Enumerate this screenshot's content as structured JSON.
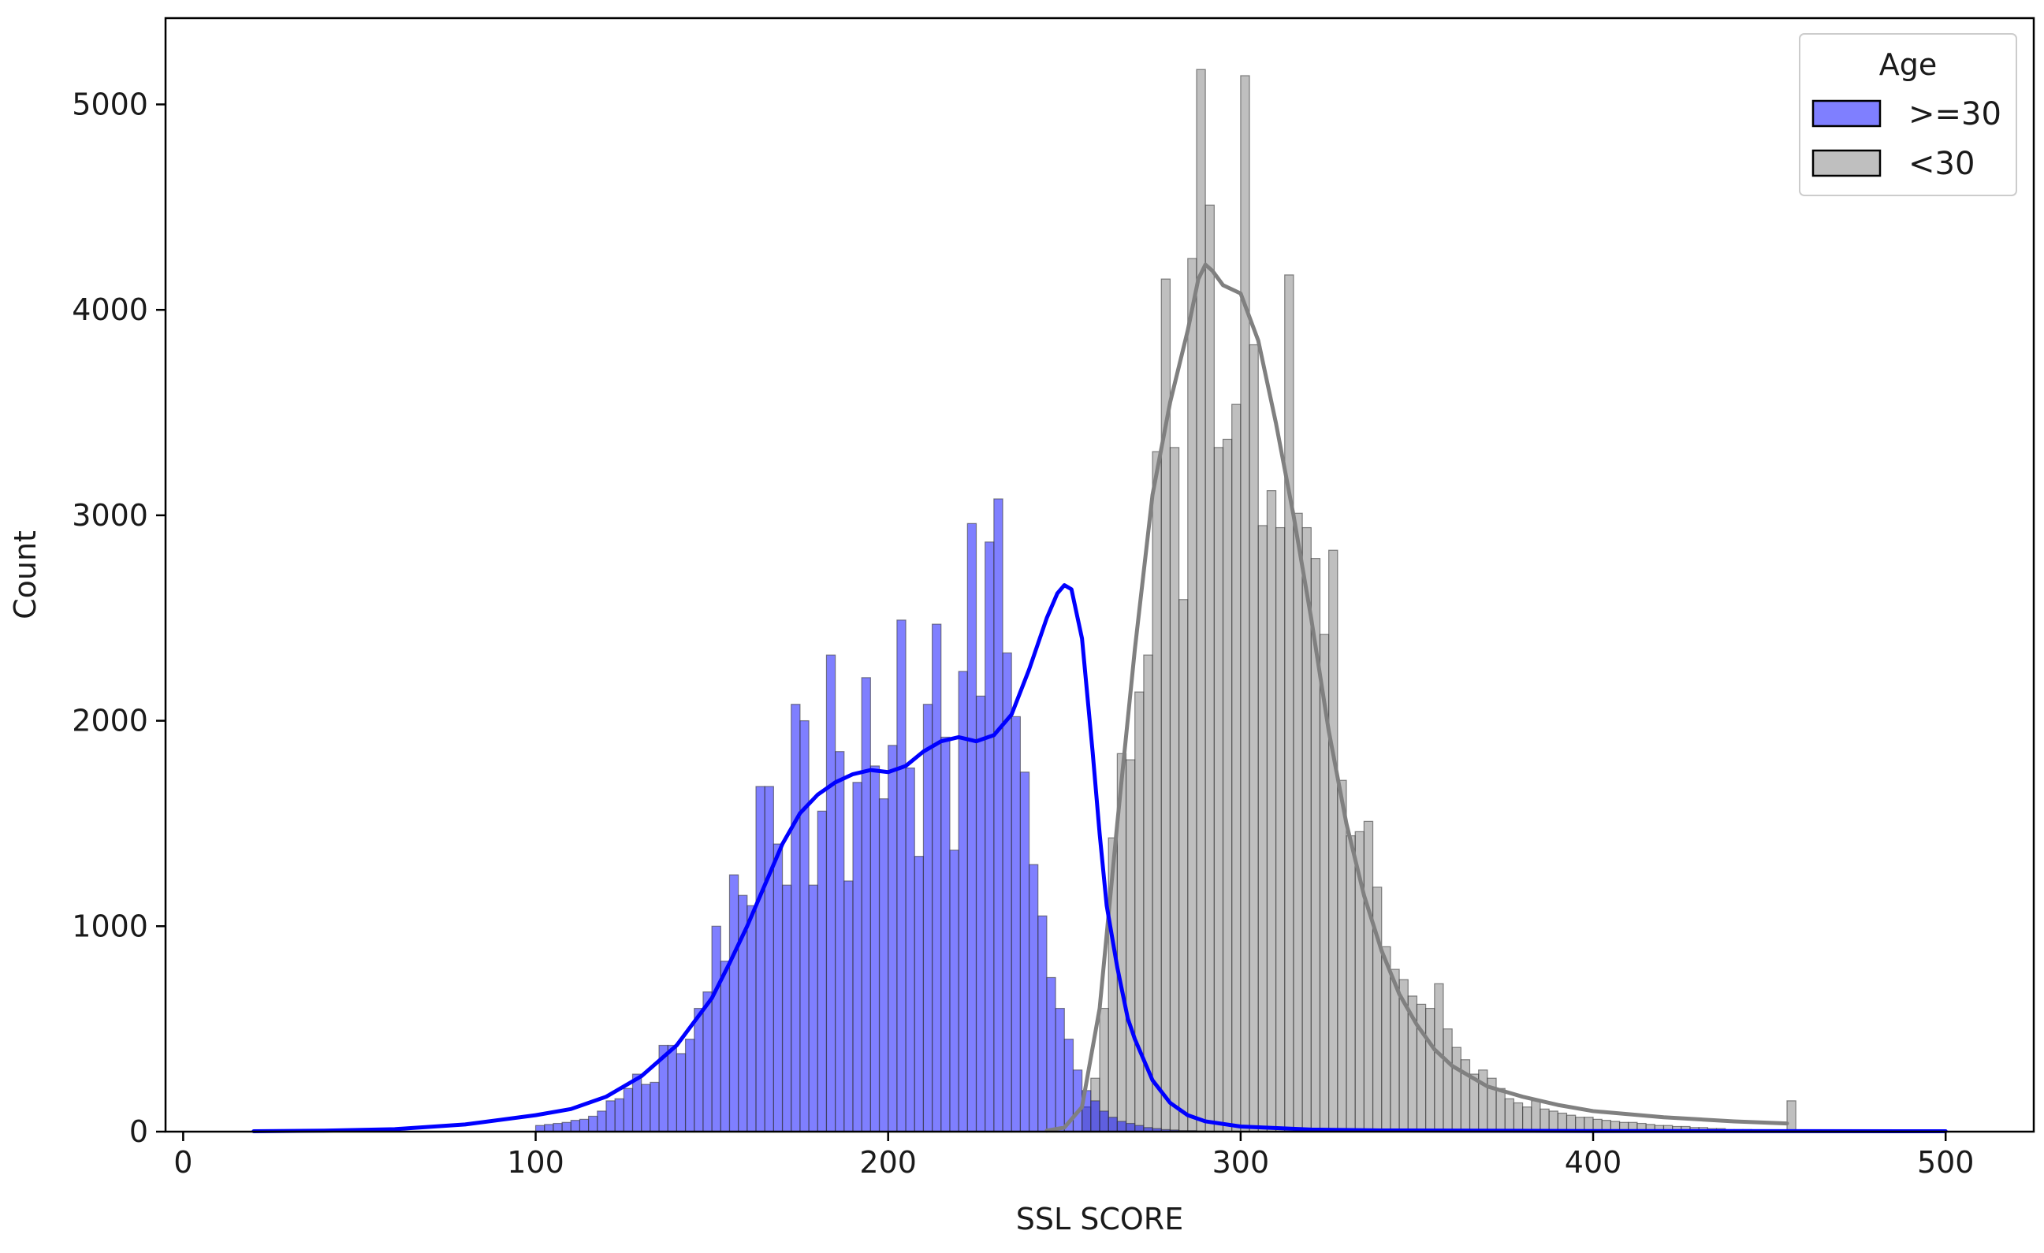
{
  "chart_data": {
    "type": "histogram",
    "xlabel": "SSL SCORE",
    "ylabel": "Count",
    "xlim": [
      -5,
      525
    ],
    "ylim": [
      0,
      5420
    ],
    "bin_width": 2.5,
    "x_ticks": [
      0,
      100,
      200,
      300,
      400,
      500
    ],
    "y_ticks": [
      0,
      1000,
      2000,
      3000,
      4000,
      5000
    ],
    "legend": {
      "title": "Age",
      "placement": "top-right"
    },
    "series": [
      {
        "name": ">=30",
        "color": "#0000ff",
        "bar_fill": "rgba(0,0,255,0.5)",
        "bins": [
          [
            100,
            30
          ],
          [
            102.5,
            35
          ],
          [
            105,
            40
          ],
          [
            107.5,
            45
          ],
          [
            110,
            55
          ],
          [
            112.5,
            60
          ],
          [
            115,
            75
          ],
          [
            117.5,
            100
          ],
          [
            120,
            150
          ],
          [
            122.5,
            160
          ],
          [
            125,
            210
          ],
          [
            127.5,
            280
          ],
          [
            130,
            230
          ],
          [
            132.5,
            240
          ],
          [
            135,
            420
          ],
          [
            137.5,
            420
          ],
          [
            140,
            380
          ],
          [
            142.5,
            450
          ],
          [
            145,
            600
          ],
          [
            147.5,
            680
          ],
          [
            150,
            1000
          ],
          [
            152.5,
            830
          ],
          [
            155,
            1250
          ],
          [
            157.5,
            1150
          ],
          [
            160,
            1100
          ],
          [
            162.5,
            1680
          ],
          [
            165,
            1680
          ],
          [
            167.5,
            1400
          ],
          [
            170,
            1200
          ],
          [
            172.5,
            2080
          ],
          [
            175,
            2000
          ],
          [
            177.5,
            1200
          ],
          [
            180,
            1560
          ],
          [
            182.5,
            2320
          ],
          [
            185,
            1850
          ],
          [
            187.5,
            1220
          ],
          [
            190,
            1700
          ],
          [
            192.5,
            2210
          ],
          [
            195,
            1780
          ],
          [
            197.5,
            1620
          ],
          [
            200,
            1880
          ],
          [
            202.5,
            2490
          ],
          [
            205,
            1770
          ],
          [
            207.5,
            1340
          ],
          [
            210,
            2080
          ],
          [
            212.5,
            2470
          ],
          [
            215,
            1920
          ],
          [
            217.5,
            1370
          ],
          [
            220,
            2240
          ],
          [
            222.5,
            2960
          ],
          [
            225,
            2120
          ],
          [
            227.5,
            2870
          ],
          [
            230,
            3080
          ],
          [
            232.5,
            2330
          ],
          [
            235,
            2020
          ],
          [
            237.5,
            1750
          ],
          [
            240,
            1300
          ],
          [
            242.5,
            1050
          ],
          [
            245,
            750
          ],
          [
            247.5,
            600
          ],
          [
            250,
            450
          ],
          [
            252.5,
            300
          ],
          [
            255,
            200
          ],
          [
            257.5,
            150
          ],
          [
            260,
            100
          ],
          [
            262.5,
            70
          ],
          [
            265,
            50
          ],
          [
            267.5,
            40
          ],
          [
            270,
            30
          ],
          [
            272.5,
            20
          ],
          [
            275,
            15
          ],
          [
            277.5,
            10
          ],
          [
            280,
            8
          ],
          [
            282.5,
            5
          ],
          [
            285,
            5
          ],
          [
            287.5,
            3
          ],
          [
            290,
            2
          ]
        ],
        "kde": [
          [
            20,
            2
          ],
          [
            40,
            5
          ],
          [
            60,
            12
          ],
          [
            80,
            35
          ],
          [
            100,
            80
          ],
          [
            110,
            110
          ],
          [
            120,
            170
          ],
          [
            130,
            270
          ],
          [
            140,
            420
          ],
          [
            150,
            650
          ],
          [
            155,
            820
          ],
          [
            160,
            1000
          ],
          [
            165,
            1200
          ],
          [
            170,
            1400
          ],
          [
            175,
            1550
          ],
          [
            180,
            1640
          ],
          [
            185,
            1700
          ],
          [
            190,
            1740
          ],
          [
            195,
            1760
          ],
          [
            200,
            1750
          ],
          [
            205,
            1780
          ],
          [
            210,
            1850
          ],
          [
            215,
            1900
          ],
          [
            220,
            1920
          ],
          [
            225,
            1900
          ],
          [
            230,
            1930
          ],
          [
            235,
            2030
          ],
          [
            240,
            2250
          ],
          [
            245,
            2500
          ],
          [
            248,
            2620
          ],
          [
            250,
            2660
          ],
          [
            252,
            2640
          ],
          [
            255,
            2400
          ],
          [
            258,
            1850
          ],
          [
            260,
            1450
          ],
          [
            262,
            1100
          ],
          [
            265,
            800
          ],
          [
            268,
            550
          ],
          [
            270,
            450
          ],
          [
            275,
            250
          ],
          [
            280,
            140
          ],
          [
            285,
            80
          ],
          [
            290,
            50
          ],
          [
            300,
            25
          ],
          [
            320,
            10
          ],
          [
            340,
            6
          ],
          [
            400,
            3
          ],
          [
            500,
            2
          ]
        ]
      },
      {
        "name": "<30",
        "color": "#808080",
        "bar_fill": "rgba(128,128,128,0.5)",
        "bins": [
          [
            255,
            120
          ],
          [
            257.5,
            260
          ],
          [
            260,
            600
          ],
          [
            262.5,
            1430
          ],
          [
            265,
            1840
          ],
          [
            267.5,
            1810
          ],
          [
            270,
            2140
          ],
          [
            272.5,
            2320
          ],
          [
            275,
            3310
          ],
          [
            277.5,
            4150
          ],
          [
            280,
            3330
          ],
          [
            282.5,
            2590
          ],
          [
            285,
            4250
          ],
          [
            287.5,
            5170
          ],
          [
            290,
            4510
          ],
          [
            292.5,
            3330
          ],
          [
            295,
            3370
          ],
          [
            297.5,
            3540
          ],
          [
            300,
            5140
          ],
          [
            302.5,
            3830
          ],
          [
            305,
            2950
          ],
          [
            307.5,
            3120
          ],
          [
            310,
            2940
          ],
          [
            312.5,
            4170
          ],
          [
            315,
            3010
          ],
          [
            317.5,
            2940
          ],
          [
            320,
            2790
          ],
          [
            322.5,
            2420
          ],
          [
            325,
            2830
          ],
          [
            327.5,
            1710
          ],
          [
            330,
            1440
          ],
          [
            332.5,
            1460
          ],
          [
            335,
            1510
          ],
          [
            337.5,
            1190
          ],
          [
            340,
            900
          ],
          [
            342.5,
            790
          ],
          [
            345,
            740
          ],
          [
            347.5,
            660
          ],
          [
            350,
            620
          ],
          [
            352.5,
            600
          ],
          [
            355,
            720
          ],
          [
            357.5,
            500
          ],
          [
            360,
            410
          ],
          [
            362.5,
            350
          ],
          [
            365,
            280
          ],
          [
            367.5,
            300
          ],
          [
            370,
            260
          ],
          [
            372.5,
            210
          ],
          [
            375,
            160
          ],
          [
            377.5,
            140
          ],
          [
            380,
            120
          ],
          [
            382.5,
            150
          ],
          [
            385,
            110
          ],
          [
            387.5,
            100
          ],
          [
            390,
            90
          ],
          [
            392.5,
            80
          ],
          [
            395,
            70
          ],
          [
            397.5,
            70
          ],
          [
            400,
            60
          ],
          [
            402.5,
            55
          ],
          [
            405,
            50
          ],
          [
            407.5,
            45
          ],
          [
            410,
            45
          ],
          [
            412.5,
            40
          ],
          [
            415,
            35
          ],
          [
            417.5,
            30
          ],
          [
            420,
            30
          ],
          [
            422.5,
            25
          ],
          [
            425,
            25
          ],
          [
            427.5,
            20
          ],
          [
            430,
            20
          ],
          [
            432.5,
            15
          ],
          [
            435,
            15
          ],
          [
            437.5,
            10
          ],
          [
            440,
            10
          ],
          [
            442.5,
            10
          ],
          [
            445,
            8
          ],
          [
            447.5,
            8
          ],
          [
            450,
            5
          ],
          [
            452.5,
            5
          ],
          [
            455,
            150
          ]
        ],
        "kde": [
          [
            245,
            5
          ],
          [
            250,
            20
          ],
          [
            255,
            120
          ],
          [
            260,
            600
          ],
          [
            265,
            1500
          ],
          [
            270,
            2350
          ],
          [
            275,
            3100
          ],
          [
            280,
            3550
          ],
          [
            285,
            3900
          ],
          [
            288,
            4150
          ],
          [
            290,
            4220
          ],
          [
            292,
            4190
          ],
          [
            295,
            4120
          ],
          [
            300,
            4080
          ],
          [
            305,
            3850
          ],
          [
            310,
            3450
          ],
          [
            315,
            3000
          ],
          [
            320,
            2500
          ],
          [
            325,
            1950
          ],
          [
            330,
            1500
          ],
          [
            335,
            1150
          ],
          [
            340,
            880
          ],
          [
            345,
            670
          ],
          [
            350,
            520
          ],
          [
            355,
            400
          ],
          [
            360,
            320
          ],
          [
            370,
            220
          ],
          [
            380,
            170
          ],
          [
            390,
            130
          ],
          [
            400,
            100
          ],
          [
            420,
            70
          ],
          [
            440,
            50
          ],
          [
            455,
            40
          ]
        ]
      }
    ]
  }
}
